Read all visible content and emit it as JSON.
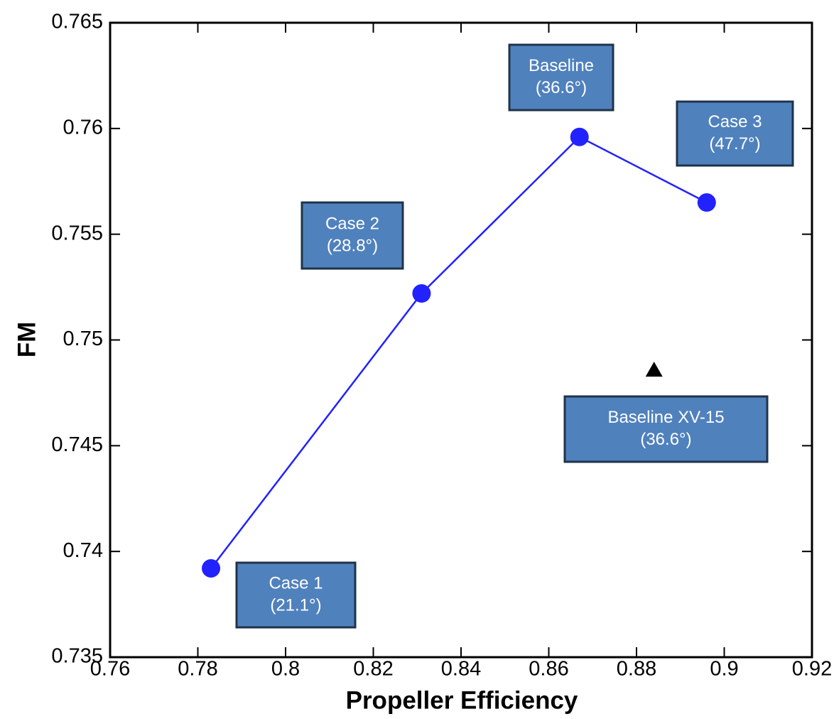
{
  "chart_data": {
    "type": "line",
    "x_label": "Propeller Efficiency",
    "y_label": "FM",
    "xlim": [
      0.76,
      0.92
    ],
    "xticks": [
      0.76,
      0.78,
      0.8,
      0.82,
      0.84,
      0.86,
      0.88,
      0.9,
      0.92
    ],
    "ylim": [
      0.735,
      0.765
    ],
    "yticks": [
      0.735,
      0.74,
      0.745,
      0.75,
      0.755,
      0.76,
      0.765
    ],
    "series": [
      {
        "color": "#2222ff",
        "marker": "circle",
        "line": true,
        "x": [
          0.783,
          0.831,
          0.867,
          0.896
        ],
        "values": [
          0.7392,
          0.7522,
          0.7596,
          0.7565
        ]
      },
      {
        "color": "#000000",
        "marker": "triangle",
        "line": false,
        "x": [
          0.884
        ],
        "values": [
          0.7486
        ]
      }
    ],
    "annotations": [
      {
        "lines": [
          "Case 1",
          "(21.1°)"
        ]
      },
      {
        "lines": [
          "Case 2",
          "(28.8°)"
        ]
      },
      {
        "lines": [
          "Baseline",
          "(36.6°)"
        ]
      },
      {
        "lines": [
          "Case 3",
          "(47.7°)"
        ]
      },
      {
        "lines": [
          "Baseline XV-15",
          "(36.6°)"
        ]
      }
    ]
  }
}
